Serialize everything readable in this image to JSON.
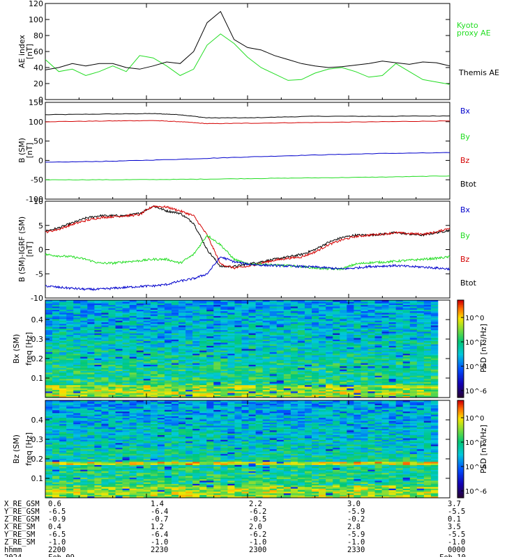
{
  "colors": {
    "black": "#000000",
    "red": "#d40000",
    "green": "#22dd22",
    "blue": "#0000cc"
  },
  "chart_data": [
    {
      "type": "line",
      "ylabel": "AE index",
      "yunit": "[nT]",
      "ylim": [
        0,
        120
      ],
      "yticks": [
        0,
        20,
        40,
        60,
        80,
        100,
        120
      ],
      "xlim": [
        0,
        30
      ],
      "legend_placement": "right",
      "series": [
        {
          "name": "Kyoto proxy AE",
          "color": "#22dd22",
          "x": [
            0,
            1,
            2,
            3,
            4,
            5,
            6,
            7,
            8,
            9,
            10,
            11,
            12,
            13,
            14,
            15,
            16,
            17,
            18,
            19,
            20,
            21,
            22,
            23,
            24,
            25,
            26,
            27,
            28,
            29,
            30
          ],
          "y": [
            50,
            35,
            38,
            30,
            35,
            42,
            35,
            55,
            52,
            42,
            30,
            38,
            68,
            82,
            70,
            53,
            40,
            32,
            24,
            25,
            33,
            38,
            40,
            35,
            28,
            30,
            45,
            35,
            25,
            22,
            19
          ]
        },
        {
          "name": "Themis AE",
          "color": "#000000",
          "x": [
            0,
            1,
            2,
            3,
            4,
            5,
            6,
            7,
            8,
            9,
            10,
            11,
            12,
            13,
            14,
            15,
            16,
            17,
            18,
            19,
            20,
            21,
            22,
            23,
            24,
            25,
            26,
            27,
            28,
            29,
            30
          ],
          "y": [
            37,
            40,
            45,
            42,
            45,
            45,
            40,
            38,
            42,
            47,
            45,
            60,
            96,
            110,
            75,
            65,
            62,
            55,
            50,
            45,
            42,
            40,
            41,
            43,
            45,
            48,
            46,
            44,
            47,
            46,
            42
          ]
        }
      ]
    },
    {
      "type": "line",
      "ylabel": "B (SM)",
      "yunit": "[nT]",
      "ylim": [
        -100,
        150
      ],
      "yticks": [
        -100,
        -50,
        0,
        50,
        100,
        150
      ],
      "xlim": [
        0,
        30
      ],
      "legend": [
        "Bx",
        "By",
        "Bz",
        "Btot"
      ],
      "legend_placement": "right",
      "series": [
        {
          "name": "Btot",
          "color": "#000000",
          "x": [
            0,
            5,
            8,
            10,
            12,
            15,
            20,
            25,
            30
          ],
          "y": [
            118,
            120,
            121,
            118,
            110,
            110,
            114,
            114,
            115
          ]
        },
        {
          "name": "Bz",
          "color": "#d40000",
          "x": [
            0,
            5,
            8,
            10,
            12,
            15,
            20,
            25,
            30
          ],
          "y": [
            100,
            102,
            103,
            100,
            95,
            96,
            98,
            100,
            102
          ]
        },
        {
          "name": "Bx",
          "color": "#0000cc",
          "x": [
            0,
            5,
            10,
            15,
            20,
            25,
            30
          ],
          "y": [
            -5,
            -2,
            3,
            9,
            14,
            18,
            20
          ]
        },
        {
          "name": "By",
          "color": "#22dd22",
          "x": [
            0,
            5,
            10,
            15,
            20,
            25,
            30
          ],
          "y": [
            -50,
            -50,
            -49,
            -47,
            -45,
            -43,
            -40
          ]
        }
      ]
    },
    {
      "type": "line",
      "ylabel": "B (SM)-IGRF (SM)",
      "yunit": "[nT]",
      "ylim": [
        -10,
        10
      ],
      "yticks": [
        -10,
        -5,
        0,
        5,
        10
      ],
      "xlim": [
        0,
        30
      ],
      "legend": [
        "Bx",
        "By",
        "Bz",
        "Btot"
      ],
      "legend_placement": "right",
      "series": [
        {
          "name": "Btot",
          "color": "#000000",
          "x": [
            0,
            1,
            2,
            3,
            4,
            5,
            6,
            7,
            8,
            9,
            10,
            11,
            12,
            13,
            14,
            15,
            16,
            17,
            18,
            19,
            20,
            21,
            22,
            23,
            24,
            25,
            26,
            27,
            28,
            29,
            30
          ],
          "y": [
            3.8,
            4.5,
            5.5,
            6.5,
            7,
            7,
            7,
            7.5,
            9,
            8,
            7.5,
            5.5,
            0,
            -3.5,
            -3.5,
            -3,
            -2.5,
            -2,
            -1.5,
            -1,
            0,
            1.5,
            2.5,
            3,
            3,
            3.2,
            3.5,
            3.2,
            3,
            3.5,
            4
          ]
        },
        {
          "name": "Bz",
          "color": "#d40000",
          "x": [
            0,
            1,
            2,
            3,
            4,
            5,
            6,
            7,
            8,
            9,
            10,
            11,
            12,
            13,
            14,
            15,
            16,
            17,
            18,
            19,
            20,
            21,
            22,
            23,
            24,
            25,
            26,
            27,
            28,
            29,
            30
          ],
          "y": [
            3.6,
            4.2,
            5.2,
            6,
            6.6,
            6.8,
            7,
            7.2,
            9,
            8.8,
            8,
            7,
            3,
            -3,
            -3.8,
            -3.5,
            -2.8,
            -2.2,
            -1.8,
            -1.5,
            -0.5,
            1,
            2,
            2.7,
            3,
            3.2,
            3.5,
            3.3,
            3.2,
            3.6,
            4.5
          ]
        },
        {
          "name": "By",
          "color": "#22dd22",
          "x": [
            0,
            1,
            2,
            3,
            4,
            5,
            6,
            7,
            8,
            9,
            10,
            11,
            12,
            13,
            14,
            15,
            16,
            17,
            18,
            19,
            20,
            21,
            22,
            23,
            24,
            25,
            26,
            27,
            28,
            29,
            30
          ],
          "y": [
            -1,
            -1.3,
            -1.5,
            -2,
            -2.8,
            -2.8,
            -2.5,
            -2.3,
            -2,
            -2,
            -2.8,
            -1,
            3,
            1,
            -2,
            -3,
            -3,
            -3.2,
            -3.3,
            -3.5,
            -3.8,
            -4,
            -4,
            -3,
            -2.7,
            -2.6,
            -2.4,
            -2.2,
            -2,
            -1.8,
            -1.5
          ]
        },
        {
          "name": "Bx",
          "color": "#0000cc",
          "x": [
            0,
            1,
            2,
            3,
            4,
            5,
            6,
            7,
            8,
            9,
            10,
            11,
            12,
            13,
            14,
            15,
            16,
            17,
            18,
            19,
            20,
            21,
            22,
            23,
            24,
            25,
            26,
            27,
            28,
            29,
            30
          ],
          "y": [
            -7.5,
            -7.8,
            -8,
            -8.2,
            -8.2,
            -8,
            -7.8,
            -7.6,
            -7.5,
            -7.2,
            -6.5,
            -6,
            -5,
            -1.5,
            -2.5,
            -3,
            -3.2,
            -3.3,
            -3.4,
            -3.5,
            -3.6,
            -3.8,
            -4,
            -3.8,
            -3.5,
            -3.4,
            -3.3,
            -3.5,
            -3.6,
            -3.8,
            -4
          ]
        }
      ]
    },
    {
      "type": "heatmap",
      "ylabel": "Bx (SM)",
      "yunit": "freq [Hz]",
      "ylim": [
        0,
        0.5
      ],
      "yticks": [
        0.1,
        0.2,
        0.3,
        0.4
      ],
      "colorbar_label": "PSD [nT²/Hz]",
      "colorbar_ticks": [
        "10^0",
        "10^-2",
        "10^-4",
        "10^-6"
      ]
    },
    {
      "type": "heatmap",
      "ylabel": "Bz (SM)",
      "yunit": "freq [Hz]",
      "ylim": [
        0,
        0.5
      ],
      "yticks": [
        0.1,
        0.2,
        0.3,
        0.4
      ],
      "colorbar_label": "PSD [nT²/Hz]",
      "colorbar_ticks": [
        "10^0",
        "10^-2",
        "10^-4",
        "10^-6"
      ]
    }
  ],
  "ephemeris": {
    "rows": [
      {
        "label": "X_RE_GSM",
        "values": [
          "0.6",
          "1.4",
          "2.2",
          "3.0",
          "3.7"
        ]
      },
      {
        "label": "Y_RE_GSM",
        "values": [
          "-6.5",
          "-6.4",
          "-6.2",
          "-5.9",
          "-5.5"
        ]
      },
      {
        "label": "Z_RE_GSM",
        "values": [
          "-0.9",
          "-0.7",
          "-0.5",
          "-0.2",
          "0.1"
        ]
      },
      {
        "label": "X_RE_SM",
        "values": [
          "0.4",
          "1.2",
          "2.0",
          "2.8",
          "3.5"
        ]
      },
      {
        "label": "Y_RE_SM",
        "values": [
          "-6.5",
          "-6.4",
          "-6.2",
          "-5.9",
          "-5.5"
        ]
      },
      {
        "label": "Z_RE_SM",
        "values": [
          "-1.0",
          "-1.0",
          "-1.0",
          "-1.0",
          "-1.0"
        ]
      },
      {
        "label": "hhmm",
        "values": [
          "2200",
          "2230",
          "2300",
          "2330",
          "0000"
        ]
      }
    ],
    "date_label": "2024",
    "dates": [
      "Feb 09",
      "Feb 10"
    ]
  }
}
